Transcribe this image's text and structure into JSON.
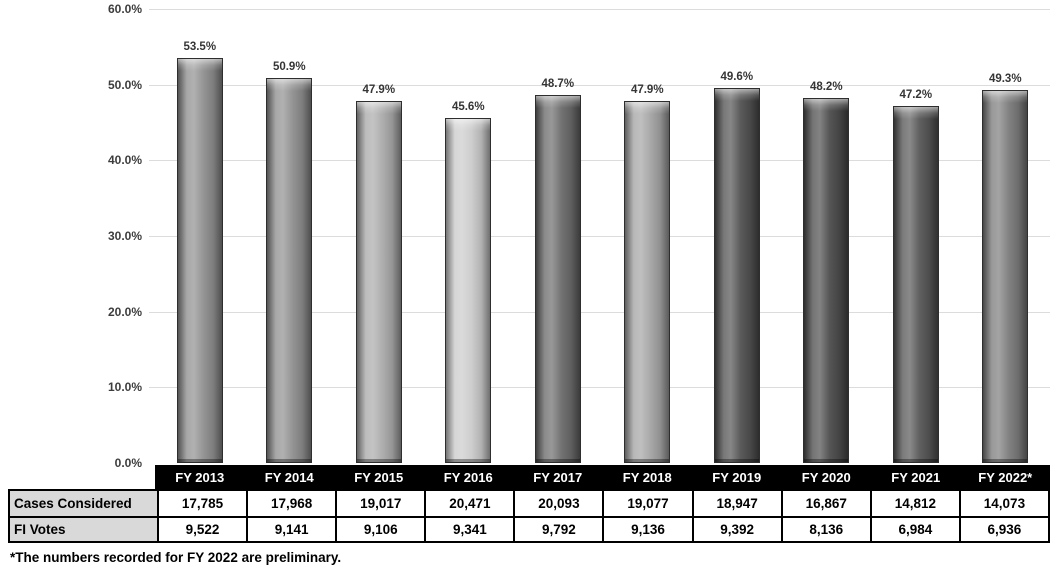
{
  "chart_data": {
    "type": "bar",
    "title": "",
    "xlabel": "",
    "ylabel": "",
    "ylim": [
      0,
      60
    ],
    "grid": true,
    "legend": false,
    "categories": [
      "FY 2013",
      "FY 2014",
      "FY 2015",
      "FY 2016",
      "FY 2017",
      "FY 2018",
      "FY 2019",
      "FY 2020",
      "FY 2021",
      "FY 2022*"
    ],
    "values": [
      53.5,
      50.9,
      47.9,
      45.6,
      48.7,
      47.9,
      49.6,
      48.2,
      47.2,
      49.3
    ],
    "value_labels": [
      "53.5%",
      "50.9%",
      "47.9%",
      "45.6%",
      "48.7%",
      "47.9%",
      "49.6%",
      "48.2%",
      "47.2%",
      "49.3%"
    ],
    "bar_colors": [
      "#8f8f8f",
      "#8f8f8f",
      "#aaaaaa",
      "#cbcbcb",
      "#6b6b6b",
      "#a4a4a4",
      "#525252",
      "#4d4d4d",
      "#575757",
      "#7c7c7c"
    ],
    "ytick_values": [
      0,
      10,
      20,
      30,
      40,
      50,
      60
    ],
    "ytick_labels": [
      "0.0%",
      "10.0%",
      "20.0%",
      "30.0%",
      "40.0%",
      "50.0%",
      "60.0%"
    ]
  },
  "table": {
    "rows": [
      {
        "label": "Cases Considered",
        "values": [
          "17,785",
          "17,968",
          "19,017",
          "20,471",
          "20,093",
          "19,077",
          "18,947",
          "16,867",
          "14,812",
          "14,073"
        ]
      },
      {
        "label": "FI Votes",
        "values": [
          "9,522",
          "9,141",
          "9,106",
          "9,341",
          "9,792",
          "9,136",
          "9,392",
          "8,136",
          "6,984",
          "6,936"
        ]
      }
    ]
  },
  "footnote": "*The numbers recorded for FY 2022 are preliminary.",
  "colors": {
    "gridline": "#dcdcdc",
    "axis_label": "#3d3d3d",
    "band_bg": "#000000",
    "band_text": "#ffffff",
    "row_header_bg": "#d9d9d9",
    "table_border": "#000000"
  }
}
